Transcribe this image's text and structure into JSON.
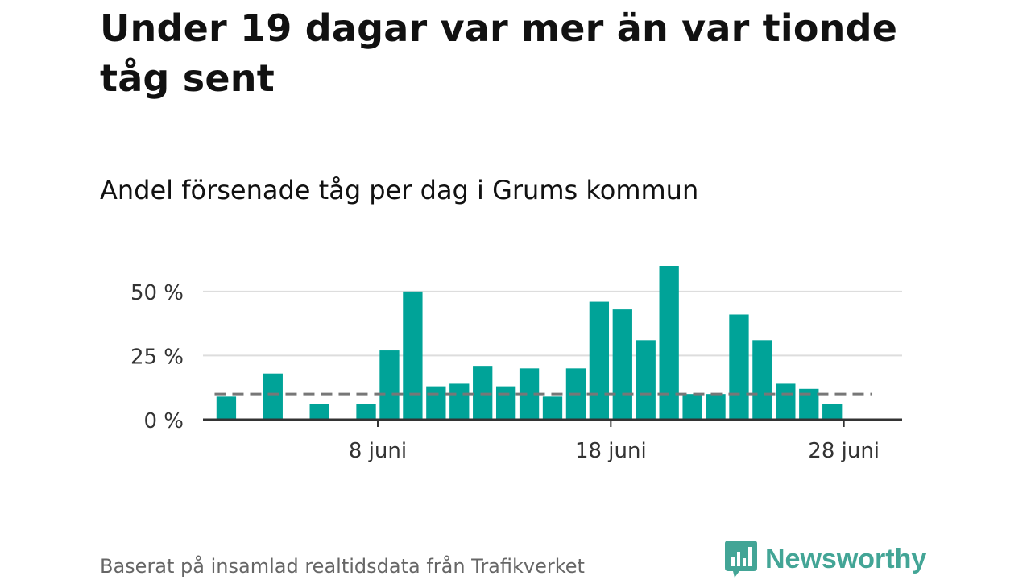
{
  "headline": "Under 19 dagar var mer än var tionde tåg sent",
  "subtitle": "Andel försenade tåg per dag i Grums kommun",
  "footer": "Baserat på insamlad realtidsdata från Trafikverket",
  "brand": {
    "name": "Newsworthy",
    "icon": "bar-chart-speech-bubble-icon"
  },
  "colors": {
    "bar": "#00a398",
    "grid": "#dddddd",
    "axis": "#333333",
    "reference": "#777777",
    "brand": "#43a596"
  },
  "chart_data": {
    "type": "bar",
    "x_unit": "date (juni)",
    "x": [
      1,
      3,
      5,
      7,
      8,
      9,
      10,
      11,
      12,
      13,
      14,
      15,
      16,
      17,
      18,
      19,
      20,
      21,
      22,
      23,
      24,
      25,
      26,
      27
    ],
    "values": [
      9,
      18,
      6,
      6,
      27,
      50,
      13,
      14,
      21,
      13,
      20,
      9,
      20,
      46,
      43,
      31,
      60,
      10,
      10,
      41,
      31,
      14,
      12,
      6
    ],
    "xlim": [
      0,
      30
    ],
    "ylim": [
      0,
      60
    ],
    "y_ticks": [
      0,
      25,
      50
    ],
    "y_tick_labels": [
      "0 %",
      "25 %",
      "50 %"
    ],
    "x_ticks": [
      8,
      18,
      28
    ],
    "x_tick_labels": [
      "8 juni",
      "18 juni",
      "28 juni"
    ],
    "reference_line": 10,
    "grid": true
  }
}
